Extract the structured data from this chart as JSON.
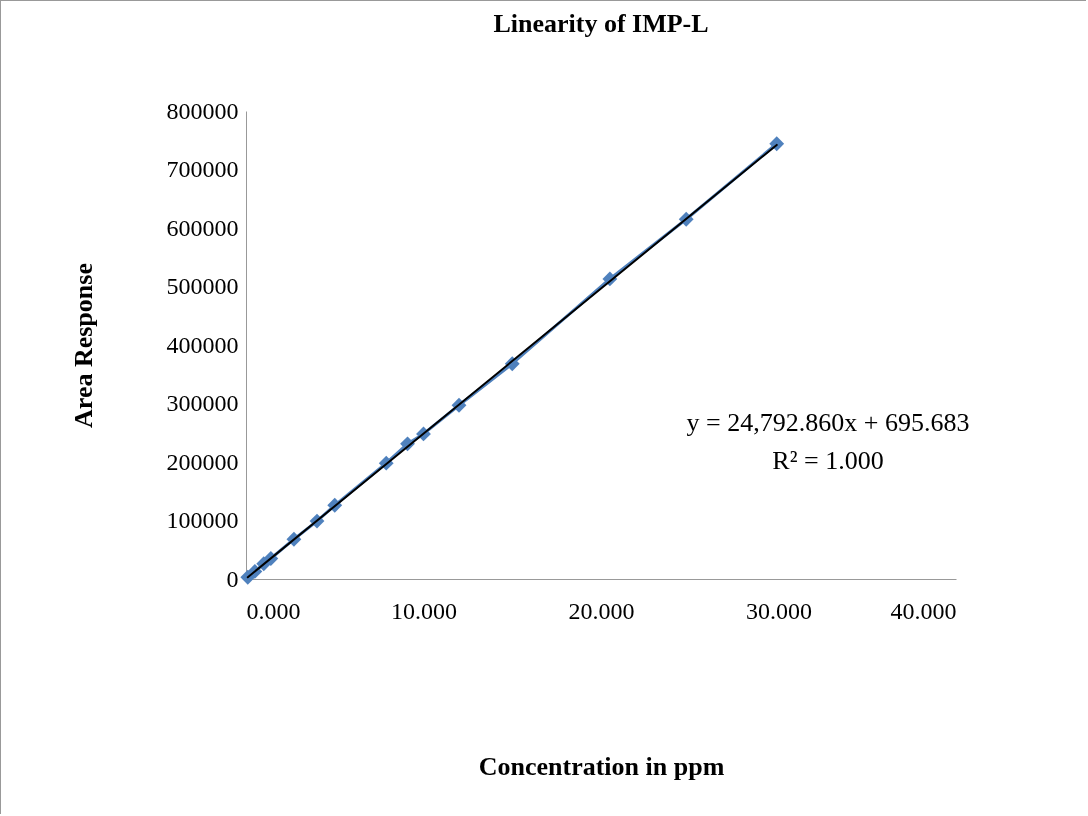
{
  "chart_data": {
    "type": "line",
    "title": "Linearity of IMP-L",
    "xlabel": "Concentration in ppm",
    "ylabel": "Area  Response",
    "series": [
      {
        "color": "#4f81bd",
        "marker": "diamond",
        "x": [
          0.1,
          0.5,
          1.0,
          1.4,
          2.7,
          4.0,
          5.0,
          7.9,
          9.1,
          10.0,
          12.0,
          15.0,
          20.5,
          24.8,
          29.9
        ],
        "values": [
          3000,
          13000,
          26000,
          35000,
          68000,
          99000,
          126000,
          198000,
          231000,
          248000,
          297000,
          368000,
          513000,
          615000,
          744000
        ]
      },
      {
        "color": "#000000",
        "x": [
          0.1,
          29.9
        ],
        "values": [
          3000,
          742000
        ]
      }
    ],
    "xlim": [
      0,
      40
    ],
    "ylim": [
      0,
      800000
    ],
    "xticks": [
      {
        "value": 0,
        "label": "0.000"
      },
      {
        "value": 10,
        "label": "10.000"
      },
      {
        "value": 20,
        "label": "20.000"
      },
      {
        "value": 30,
        "label": "30.000"
      },
      {
        "value": 40,
        "label": "40.000"
      }
    ],
    "yticks": [
      0,
      100000,
      200000,
      300000,
      400000,
      500000,
      600000,
      700000,
      800000
    ],
    "annotations": [
      "y = 24,792.860x + 695.683",
      "R² = 1.000"
    ]
  }
}
